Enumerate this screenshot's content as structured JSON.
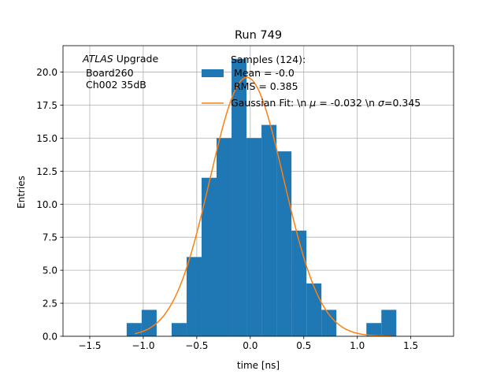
{
  "chart_data": {
    "type": "bar",
    "title": "Run 749",
    "xlabel": "time [ns]",
    "ylabel": "Entries",
    "xlim": [
      -1.75,
      1.9
    ],
    "ylim": [
      0,
      22
    ],
    "grid": true,
    "xticks": [
      -1.5,
      -1.0,
      -0.5,
      0.0,
      0.5,
      1.0,
      1.5
    ],
    "xtick_labels": [
      "−1.5",
      "−1.0",
      "−0.5",
      "0.0",
      "0.5",
      "1.0",
      "1.5"
    ],
    "yticks": [
      0,
      2.5,
      5,
      7.5,
      10,
      12.5,
      15,
      17.5,
      20
    ],
    "ytick_labels": [
      "0.0",
      "2.5",
      "5.0",
      "7.5",
      "10.0",
      "12.5",
      "15.0",
      "17.5",
      "20.0"
    ],
    "bin_edges": [
      -1.155,
      -1.015,
      -0.875,
      -0.735,
      -0.595,
      -0.455,
      -0.315,
      -0.175,
      -0.035,
      0.105,
      0.245,
      0.385,
      0.525,
      0.665,
      0.805,
      0.945,
      1.085,
      1.225,
      1.365
    ],
    "histogram": [
      1,
      2,
      0,
      1,
      6,
      12,
      15,
      21,
      15,
      16,
      14,
      8,
      4,
      2,
      0,
      0,
      1,
      2
    ],
    "series": [
      {
        "name": "Samples (124):\n Mean = -0.0\n RMS = 0.385",
        "kind": "histogram",
        "color": "#1f77b4"
      },
      {
        "name": "Gaussian Fit: \\n $\\mu$ = -0.032 \\n $\\sigma$=0.345",
        "kind": "line",
        "color": "#ff7f0e",
        "fit": {
          "amplitude": 19.6,
          "mu": -0.032,
          "sigma": 0.345,
          "x_range": [
            -1.08,
            1.32
          ]
        }
      }
    ],
    "annotation": {
      "italic": "ATLAS",
      "rest": " Upgrade",
      "line2": " Board260",
      "line3": " Ch002 35dB"
    },
    "legend": {
      "placement": "top-center",
      "entries": [
        {
          "lines": [
            "Samples (124):",
            " Mean = -0.0",
            " RMS = 0.385"
          ]
        },
        {
          "prefix": "Gaussian Fit: \\n ",
          "mu_sym": "μ",
          "mid": " = -0.032 \\n ",
          "sigma_sym": "σ",
          "suffix": "=0.345"
        }
      ]
    }
  }
}
